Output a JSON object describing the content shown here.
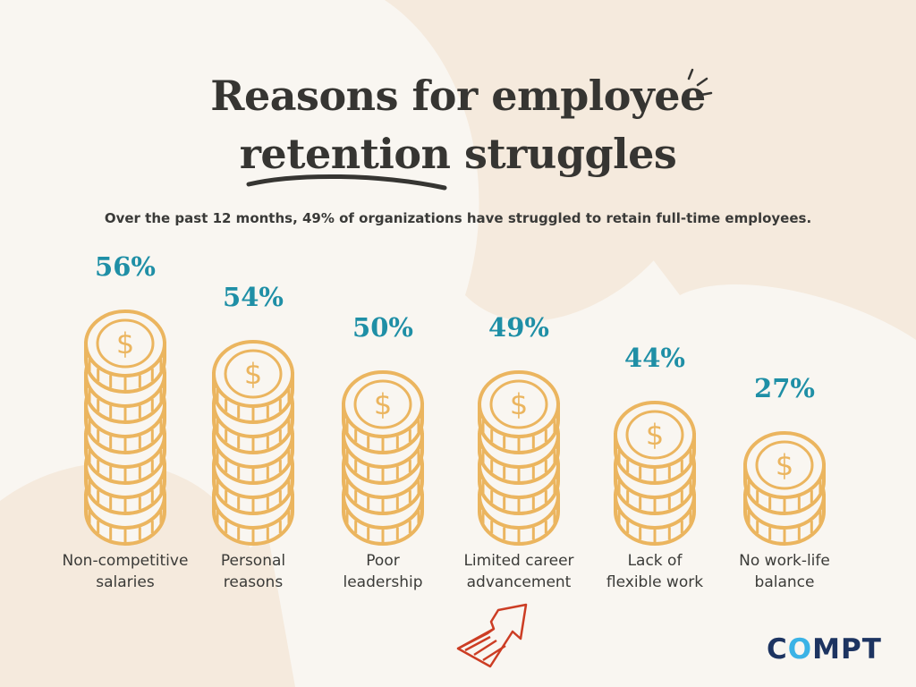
{
  "title": {
    "line1": "Reasons for employee",
    "line2": "retention struggles"
  },
  "subtitle": "Over the past 12 months, 49% of organizations have struggled to retain full-time employees.",
  "logo": {
    "text": "COMPT",
    "pre": "C",
    "o": "O",
    "post": "MPT"
  },
  "colors": {
    "coin": "#ebb55f",
    "percent": "#1f8fa6",
    "text": "#363532",
    "arrow": "#cc3d24",
    "logo": "#1d3461",
    "logo_accent": "#3bb3e6",
    "background": "#f9f6f1",
    "blob": "#f5eadd"
  },
  "chart_data": {
    "type": "bar",
    "style": "coin stacks",
    "categories": [
      [
        "Non-competitive",
        "salaries"
      ],
      [
        "Personal",
        "reasons"
      ],
      [
        "Poor",
        "leadership"
      ],
      [
        "Limited career",
        "advancement"
      ],
      [
        "Lack of",
        "flexible work"
      ],
      [
        "No work-life",
        "balance"
      ]
    ],
    "values": [
      56,
      54,
      50,
      49,
      44,
      27
    ],
    "value_labels": [
      "56%",
      "54%",
      "50%",
      "49%",
      "44%",
      "27%"
    ],
    "unit": "%",
    "grid": false
  }
}
